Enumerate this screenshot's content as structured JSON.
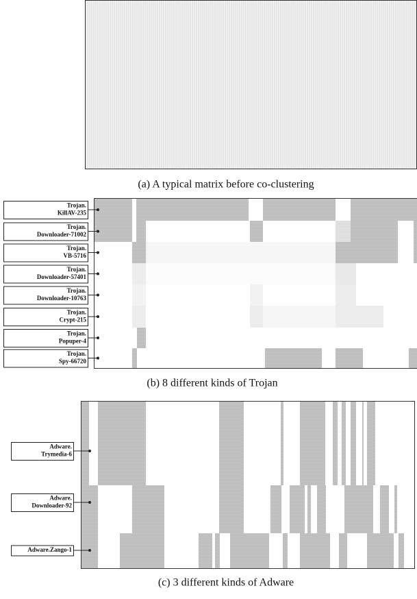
{
  "panel_a": {
    "caption": "(a) A typical matrix before co-clustering"
  },
  "panel_b": {
    "caption": "(b) 8 different kinds of Trojan",
    "labels": [
      [
        "Trojan.",
        "KillAV-235"
      ],
      [
        "Trojan.",
        "Downloader-71002"
      ],
      [
        "Trojan.",
        "VB-5716"
      ],
      [
        "Trojan.",
        "Downloader-57401"
      ],
      [
        "Trojan.",
        "Downloader-10763"
      ],
      [
        "Trojan.",
        "Crypt-215"
      ],
      [
        "Trojan.",
        "Popuper-4"
      ],
      [
        "Trojan.",
        "Spy-66720"
      ]
    ]
  },
  "panel_c": {
    "caption": "(c) 3 different kinds of Adware",
    "labels": [
      [
        "Adware.",
        "Trymedia-6"
      ],
      [
        "Adware.",
        "Downloader-92"
      ],
      [
        "Adware.Zango-1"
      ]
    ]
  }
}
